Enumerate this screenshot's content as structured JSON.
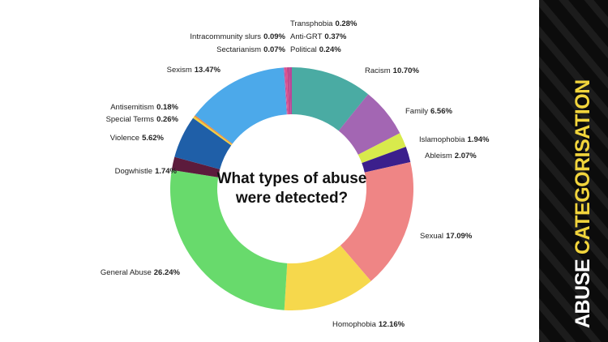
{
  "chart_data": {
    "type": "donut",
    "title": [
      "What types of abuse",
      "were detected?"
    ],
    "categories": [
      "Racism",
      "Family",
      "Islamophobia",
      "Ableism",
      "Sexual",
      "Homophobia",
      "General Abuse",
      "Dogwhistle",
      "Violence",
      "Special Terms",
      "Antisemitism",
      "Sexism",
      "Intracommunity slurs",
      "Sectarianism",
      "Political",
      "Anti-GRT",
      "Transphobia"
    ],
    "values": [
      10.7,
      6.56,
      1.94,
      2.07,
      17.09,
      12.16,
      26.24,
      1.74,
      5.62,
      0.26,
      0.18,
      13.47,
      0.09,
      0.07,
      0.24,
      0.37,
      0.28
    ],
    "value_labels": [
      "10.70%",
      "6.56%",
      "1.94%",
      "2.07%",
      "17.09%",
      "12.16%",
      "26.24%",
      "1.74%",
      "5.62%",
      "0.26%",
      "0.18%",
      "13.47%",
      "0.09%",
      "0.07%",
      "0.24%",
      "0.37%",
      "0.28%"
    ],
    "colors": [
      "#4aaba3",
      "#a366b3",
      "#d8ea4c",
      "#3b1f8c",
      "#ef8585",
      "#f6d84c",
      "#68da6c",
      "#5c1b3c",
      "#1f5fa8",
      "#f0d040",
      "#f08a3a",
      "#4ca9ea",
      "#d2579a",
      "#9b3fa0",
      "#e0508a",
      "#c04a8c",
      "#b8459a"
    ]
  },
  "banner": {
    "first": "ABUSE",
    "second": "CATEGORISATION"
  }
}
